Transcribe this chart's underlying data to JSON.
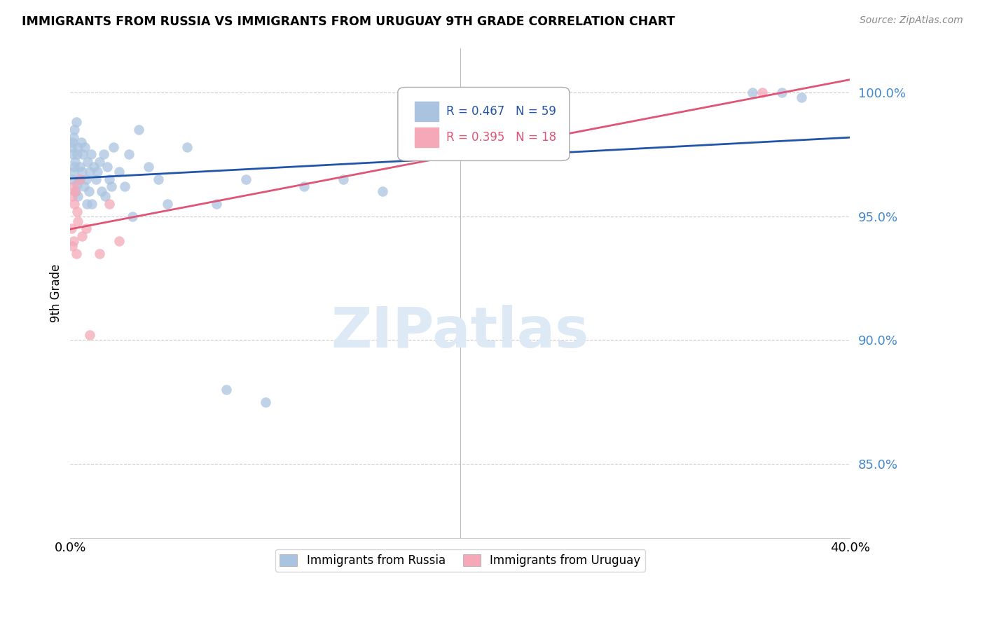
{
  "title": "IMMIGRANTS FROM RUSSIA VS IMMIGRANTS FROM URUGUAY 9TH GRADE CORRELATION CHART",
  "source": "Source: ZipAtlas.com",
  "ylabel": "9th Grade",
  "yticks": [
    85.0,
    90.0,
    95.0,
    100.0
  ],
  "ytick_labels": [
    "85.0%",
    "90.0%",
    "95.0%",
    "100.0%"
  ],
  "xlim": [
    0.0,
    40.0
  ],
  "ylim": [
    82.0,
    101.8
  ],
  "russia_R": 0.467,
  "russia_N": 59,
  "uruguay_R": 0.395,
  "uruguay_N": 18,
  "russia_color": "#aac4e0",
  "uruguay_color": "#f4a8b8",
  "russia_line_color": "#2255aa",
  "uruguay_line_color": "#e05575",
  "legend_russia": "Immigrants from Russia",
  "legend_uruguay": "Immigrants from Uruguay",
  "russia_x": [
    0.05,
    0.08,
    0.1,
    0.12,
    0.15,
    0.18,
    0.2,
    0.22,
    0.25,
    0.28,
    0.3,
    0.33,
    0.35,
    0.38,
    0.4,
    0.45,
    0.5,
    0.55,
    0.6,
    0.65,
    0.7,
    0.75,
    0.8,
    0.85,
    0.9,
    0.95,
    1.0,
    1.05,
    1.1,
    1.2,
    1.3,
    1.4,
    1.5,
    1.6,
    1.7,
    1.8,
    1.9,
    2.0,
    2.1,
    2.2,
    2.5,
    2.8,
    3.0,
    3.2,
    3.5,
    4.0,
    4.5,
    5.0,
    6.0,
    7.5,
    8.0,
    9.0,
    10.0,
    12.0,
    14.0,
    16.0,
    35.0,
    36.5,
    37.5
  ],
  "russia_y": [
    97.8,
    98.0,
    96.5,
    97.5,
    98.2,
    96.8,
    97.0,
    98.5,
    97.2,
    96.0,
    98.8,
    97.5,
    96.3,
    95.8,
    97.8,
    96.5,
    97.0,
    98.0,
    96.8,
    97.5,
    96.2,
    97.8,
    96.5,
    95.5,
    97.2,
    96.0,
    96.8,
    97.5,
    95.5,
    97.0,
    96.5,
    96.8,
    97.2,
    96.0,
    97.5,
    95.8,
    97.0,
    96.5,
    96.2,
    97.8,
    96.8,
    96.2,
    97.5,
    95.0,
    98.5,
    97.0,
    96.5,
    95.5,
    97.8,
    95.5,
    88.0,
    96.5,
    87.5,
    96.2,
    96.5,
    96.0,
    100.0,
    100.0,
    99.8
  ],
  "uruguay_x": [
    0.05,
    0.08,
    0.1,
    0.15,
    0.18,
    0.2,
    0.25,
    0.3,
    0.35,
    0.4,
    0.5,
    0.6,
    0.8,
    1.0,
    1.5,
    2.0,
    2.5,
    35.5
  ],
  "uruguay_y": [
    94.5,
    95.8,
    93.8,
    96.2,
    94.0,
    95.5,
    96.0,
    93.5,
    95.2,
    94.8,
    96.5,
    94.2,
    94.5,
    90.2,
    93.5,
    95.5,
    94.0,
    100.0
  ]
}
